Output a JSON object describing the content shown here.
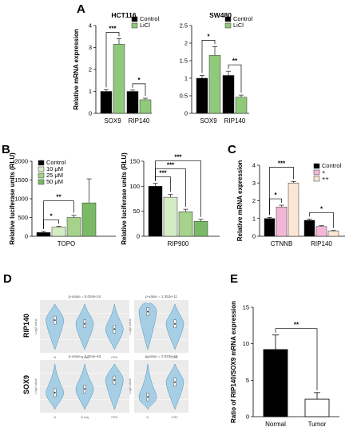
{
  "panels": {
    "A": "A",
    "B": "B",
    "C": "C",
    "D": "D",
    "E": "E"
  },
  "colors": {
    "black": "#000000",
    "green": "#8fc97a",
    "green_light": "#d4ebc4",
    "green_mid": "#a6d28c",
    "green_dark": "#7aba66",
    "pink": "#f4b6d6",
    "peach": "#fbe6d4",
    "violin": "#a6cfe6",
    "violin_stroke": "#4a8fb8",
    "panel_bg": "#ebebeb"
  },
  "chart_data": [
    {
      "panel": "A",
      "type": "bar",
      "title": "HCT116",
      "ylabel": "Relative mRNA expression",
      "ylim": [
        0,
        4
      ],
      "yticks": [
        0,
        1,
        2,
        3,
        4
      ],
      "categories": [
        "SOX9",
        "RIP140"
      ],
      "series": [
        {
          "name": "Control",
          "values": [
            1.0,
            1.0
          ],
          "errors": [
            0.08,
            0.06
          ]
        },
        {
          "name": "LiCl",
          "values": [
            3.15,
            0.62
          ],
          "errors": [
            0.25,
            0.07
          ]
        }
      ],
      "significance": [
        {
          "category": "SOX9",
          "label": "***"
        },
        {
          "category": "RIP140",
          "label": "*"
        }
      ],
      "legend": "top-right"
    },
    {
      "panel": "A",
      "type": "bar",
      "title": "SW480",
      "ylabel": "",
      "ylim": [
        0,
        2.5
      ],
      "yticks": [
        0.0,
        0.5,
        1.0,
        1.5,
        2.0,
        2.5
      ],
      "categories": [
        "SOX9",
        "RIP140"
      ],
      "series": [
        {
          "name": "Control",
          "values": [
            1.0,
            1.08
          ],
          "errors": [
            0.08,
            0.12
          ]
        },
        {
          "name": "LiCl",
          "values": [
            1.65,
            0.46
          ],
          "errors": [
            0.25,
            0.06
          ]
        }
      ],
      "significance": [
        {
          "category": "SOX9",
          "label": "*"
        },
        {
          "category": "RIP140",
          "label": "**"
        }
      ],
      "legend": "top-right"
    },
    {
      "panel": "B",
      "type": "bar",
      "title": "",
      "ylabel": "Relative luciferase units (RLU)",
      "ylim": [
        0,
        2000
      ],
      "yticks": [
        0,
        500,
        1000,
        1500,
        2000
      ],
      "categories": [
        "TOPO"
      ],
      "series": [
        {
          "name": "Control",
          "values": [
            100
          ],
          "errors": [
            30
          ]
        },
        {
          "name": "10 μM",
          "values": [
            245
          ],
          "errors": [
            20
          ]
        },
        {
          "name": "25 μM",
          "values": [
            500
          ],
          "errors": [
            60
          ]
        },
        {
          "name": "50 μM",
          "values": [
            890
          ],
          "errors": [
            640
          ]
        }
      ],
      "significance": [
        {
          "label": "*",
          "from": 0,
          "to": 1
        },
        {
          "label": "**",
          "from": 0,
          "to": 2
        }
      ],
      "legend": "top-left"
    },
    {
      "panel": "B",
      "type": "bar",
      "title": "",
      "ylabel": "Relative luciferase units (RLU)",
      "ylim": [
        0,
        150
      ],
      "yticks": [
        0,
        50,
        100,
        150
      ],
      "categories": [
        "RIP900"
      ],
      "series": [
        {
          "name": "Control",
          "values": [
            100
          ],
          "errors": [
            6
          ]
        },
        {
          "name": "10 μM",
          "values": [
            78
          ],
          "errors": [
            6
          ]
        },
        {
          "name": "25 μM",
          "values": [
            49
          ],
          "errors": [
            5
          ]
        },
        {
          "name": "50 μM",
          "values": [
            30
          ],
          "errors": [
            4
          ]
        }
      ],
      "significance": [
        {
          "label": "***",
          "from": 0,
          "to": 1
        },
        {
          "label": "***",
          "from": 0,
          "to": 2
        },
        {
          "label": "***",
          "from": 0,
          "to": 3
        }
      ]
    },
    {
      "panel": "C",
      "type": "bar",
      "title": "",
      "ylabel": "Relative mRNA expression",
      "ylim": [
        0,
        4
      ],
      "yticks": [
        0,
        1,
        2,
        3,
        4
      ],
      "categories": [
        "CTNNB",
        "RIP140"
      ],
      "series": [
        {
          "name": "Control",
          "values": [
            1.0,
            0.9
          ],
          "errors": [
            0.06,
            0.07
          ]
        },
        {
          "name": "+",
          "values": [
            1.65,
            0.55
          ],
          "errors": [
            0.1,
            0.05
          ]
        },
        {
          "name": "++",
          "values": [
            3.0,
            0.3
          ],
          "errors": [
            0.08,
            0.03
          ]
        }
      ],
      "significance": [
        {
          "label": "*",
          "category": "CTNNB",
          "from": 0,
          "to": 1
        },
        {
          "label": "***",
          "category": "CTNNB",
          "from": 0,
          "to": 2
        },
        {
          "label": "*",
          "category": "RIP140",
          "from": 0,
          "to": 2
        }
      ],
      "legend": "top-right"
    },
    {
      "panel": "E",
      "type": "bar",
      "title": "",
      "ylabel": "Ratio of RIP140/SOX9 mRNA expression",
      "ylim": [
        0,
        15
      ],
      "yticks": [
        0,
        5,
        10,
        15
      ],
      "categories": [
        "Normal",
        "Tumor"
      ],
      "values": [
        9.2,
        2.4
      ],
      "errors": [
        2.0,
        0.9
      ],
      "significance": [
        {
          "label": "**",
          "from": 0,
          "to": 1
        }
      ]
    }
  ],
  "violins": {
    "row_labels": [
      "RIP140",
      "SOX9"
    ],
    "ylabel": "Log2 value",
    "cells": [
      {
        "title": "p-value = 5.064e-24",
        "groups": [
          "N",
          "N Adj",
          "CRC"
        ],
        "centers": [
          0.62,
          0.55,
          0.45
        ]
      },
      {
        "title": "p-value = 1.362e-11",
        "groups": [
          "N",
          "CRC"
        ],
        "centers": [
          0.78,
          0.55
        ]
      },
      {
        "title": "p-value = 2.064e-63",
        "groups": [
          "N",
          "N Adj",
          "CRC"
        ],
        "centers": [
          0.38,
          0.45,
          0.62
        ]
      },
      {
        "title": "p-value = 2.833e-16",
        "groups": [
          "N",
          "CRC"
        ],
        "centers": [
          0.3,
          0.58
        ]
      }
    ]
  }
}
